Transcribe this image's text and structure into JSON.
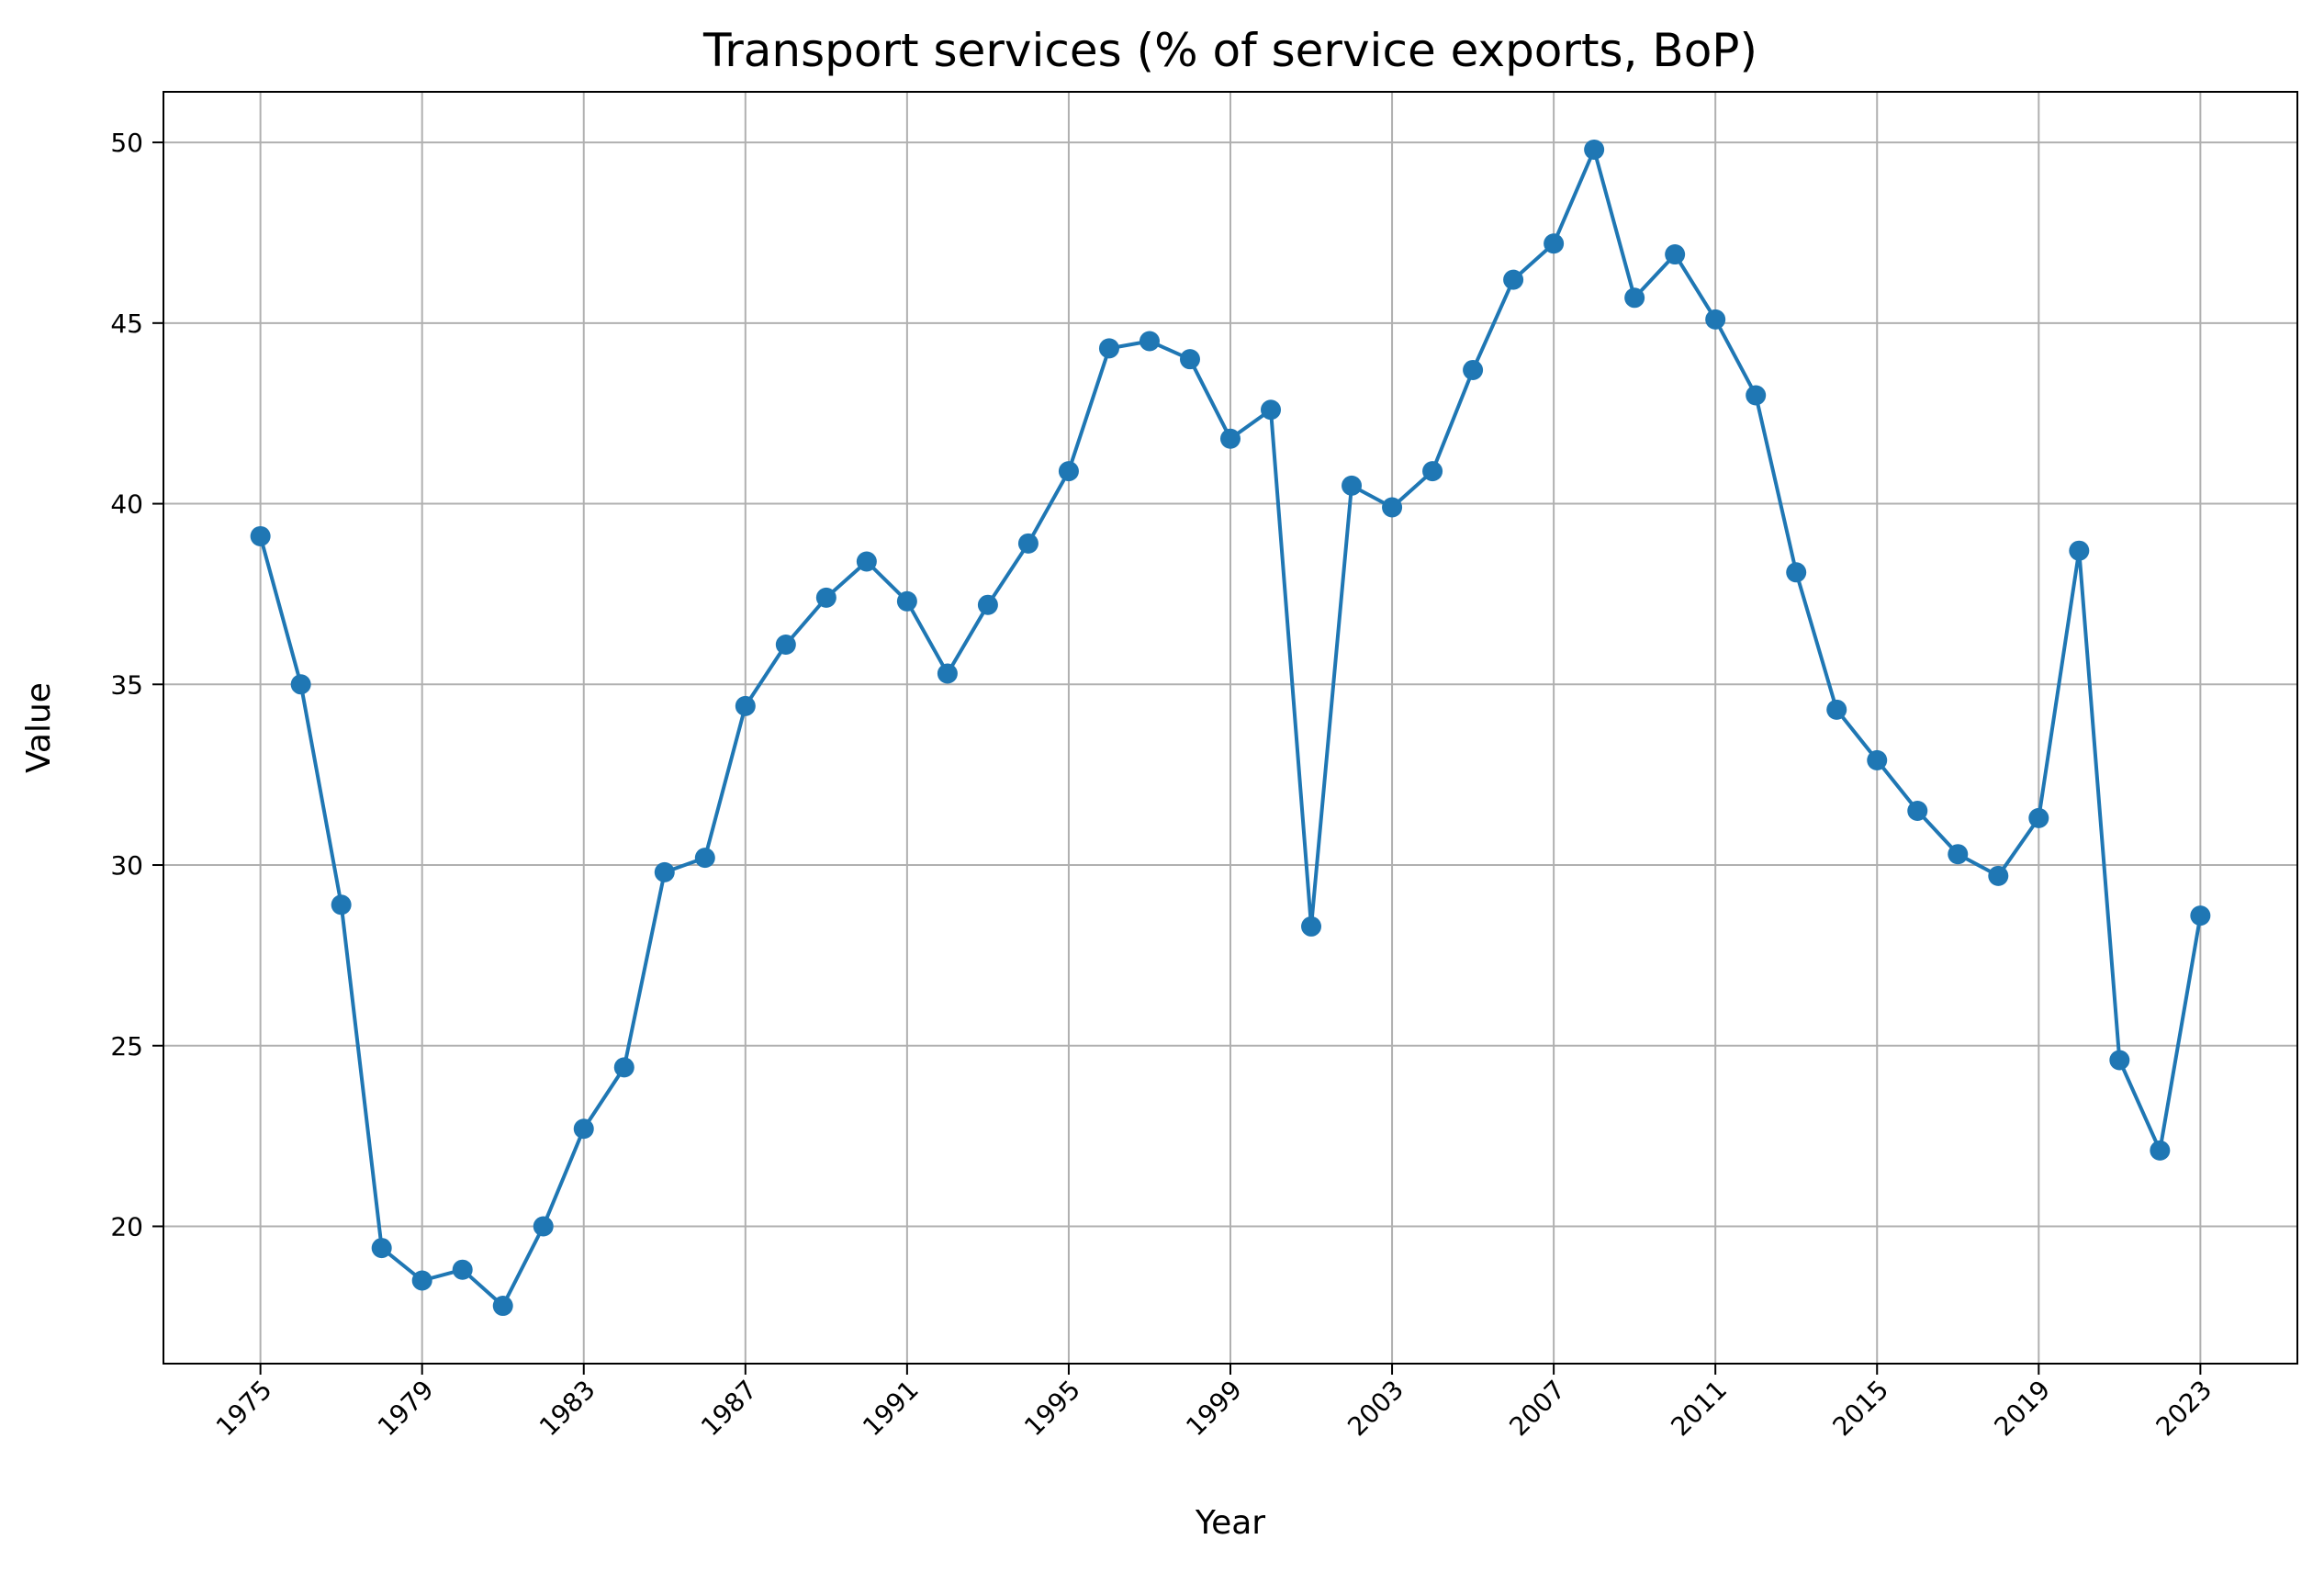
{
  "chart_data": {
    "type": "line",
    "title": "Transport services (% of service exports, BoP)",
    "xlabel": "Year",
    "ylabel": "Value",
    "x": [
      1975,
      1976,
      1977,
      1978,
      1979,
      1980,
      1981,
      1982,
      1983,
      1984,
      1985,
      1986,
      1987,
      1988,
      1989,
      1990,
      1991,
      1992,
      1993,
      1994,
      1995,
      1996,
      1997,
      1998,
      1999,
      2000,
      2001,
      2002,
      2003,
      2004,
      2005,
      2006,
      2007,
      2008,
      2009,
      2010,
      2011,
      2012,
      2013,
      2014,
      2015,
      2016,
      2017,
      2018,
      2019,
      2020,
      2021,
      2022,
      2023
    ],
    "series": [
      {
        "values": [
          39.1,
          35.0,
          28.9,
          19.4,
          18.5,
          18.8,
          17.8,
          20.0,
          22.7,
          24.4,
          29.8,
          30.2,
          34.4,
          36.1,
          37.4,
          38.4,
          37.3,
          35.3,
          37.2,
          38.9,
          40.9,
          44.3,
          44.5,
          44.0,
          41.8,
          42.6,
          28.3,
          40.5,
          39.9,
          40.9,
          43.7,
          46.2,
          47.2,
          49.8,
          45.7,
          46.9,
          45.1,
          43.0,
          38.1,
          34.3,
          32.9,
          31.5,
          30.3,
          29.7,
          31.3,
          38.7,
          24.6,
          22.1,
          28.6
        ],
        "color": "#1f77b4"
      }
    ],
    "x_ticks": [
      "1975",
      "1979",
      "1983",
      "1987",
      "1991",
      "1995",
      "1999",
      "2003",
      "2007",
      "2011",
      "2015",
      "2019",
      "2023"
    ],
    "y_ticks": [
      "20",
      "25",
      "30",
      "35",
      "40",
      "45",
      "50"
    ],
    "xlim": [
      1972.6,
      2025.4
    ],
    "ylim": [
      16.2,
      51.4
    ],
    "grid": true,
    "grid_color": "#b0b0b0"
  }
}
